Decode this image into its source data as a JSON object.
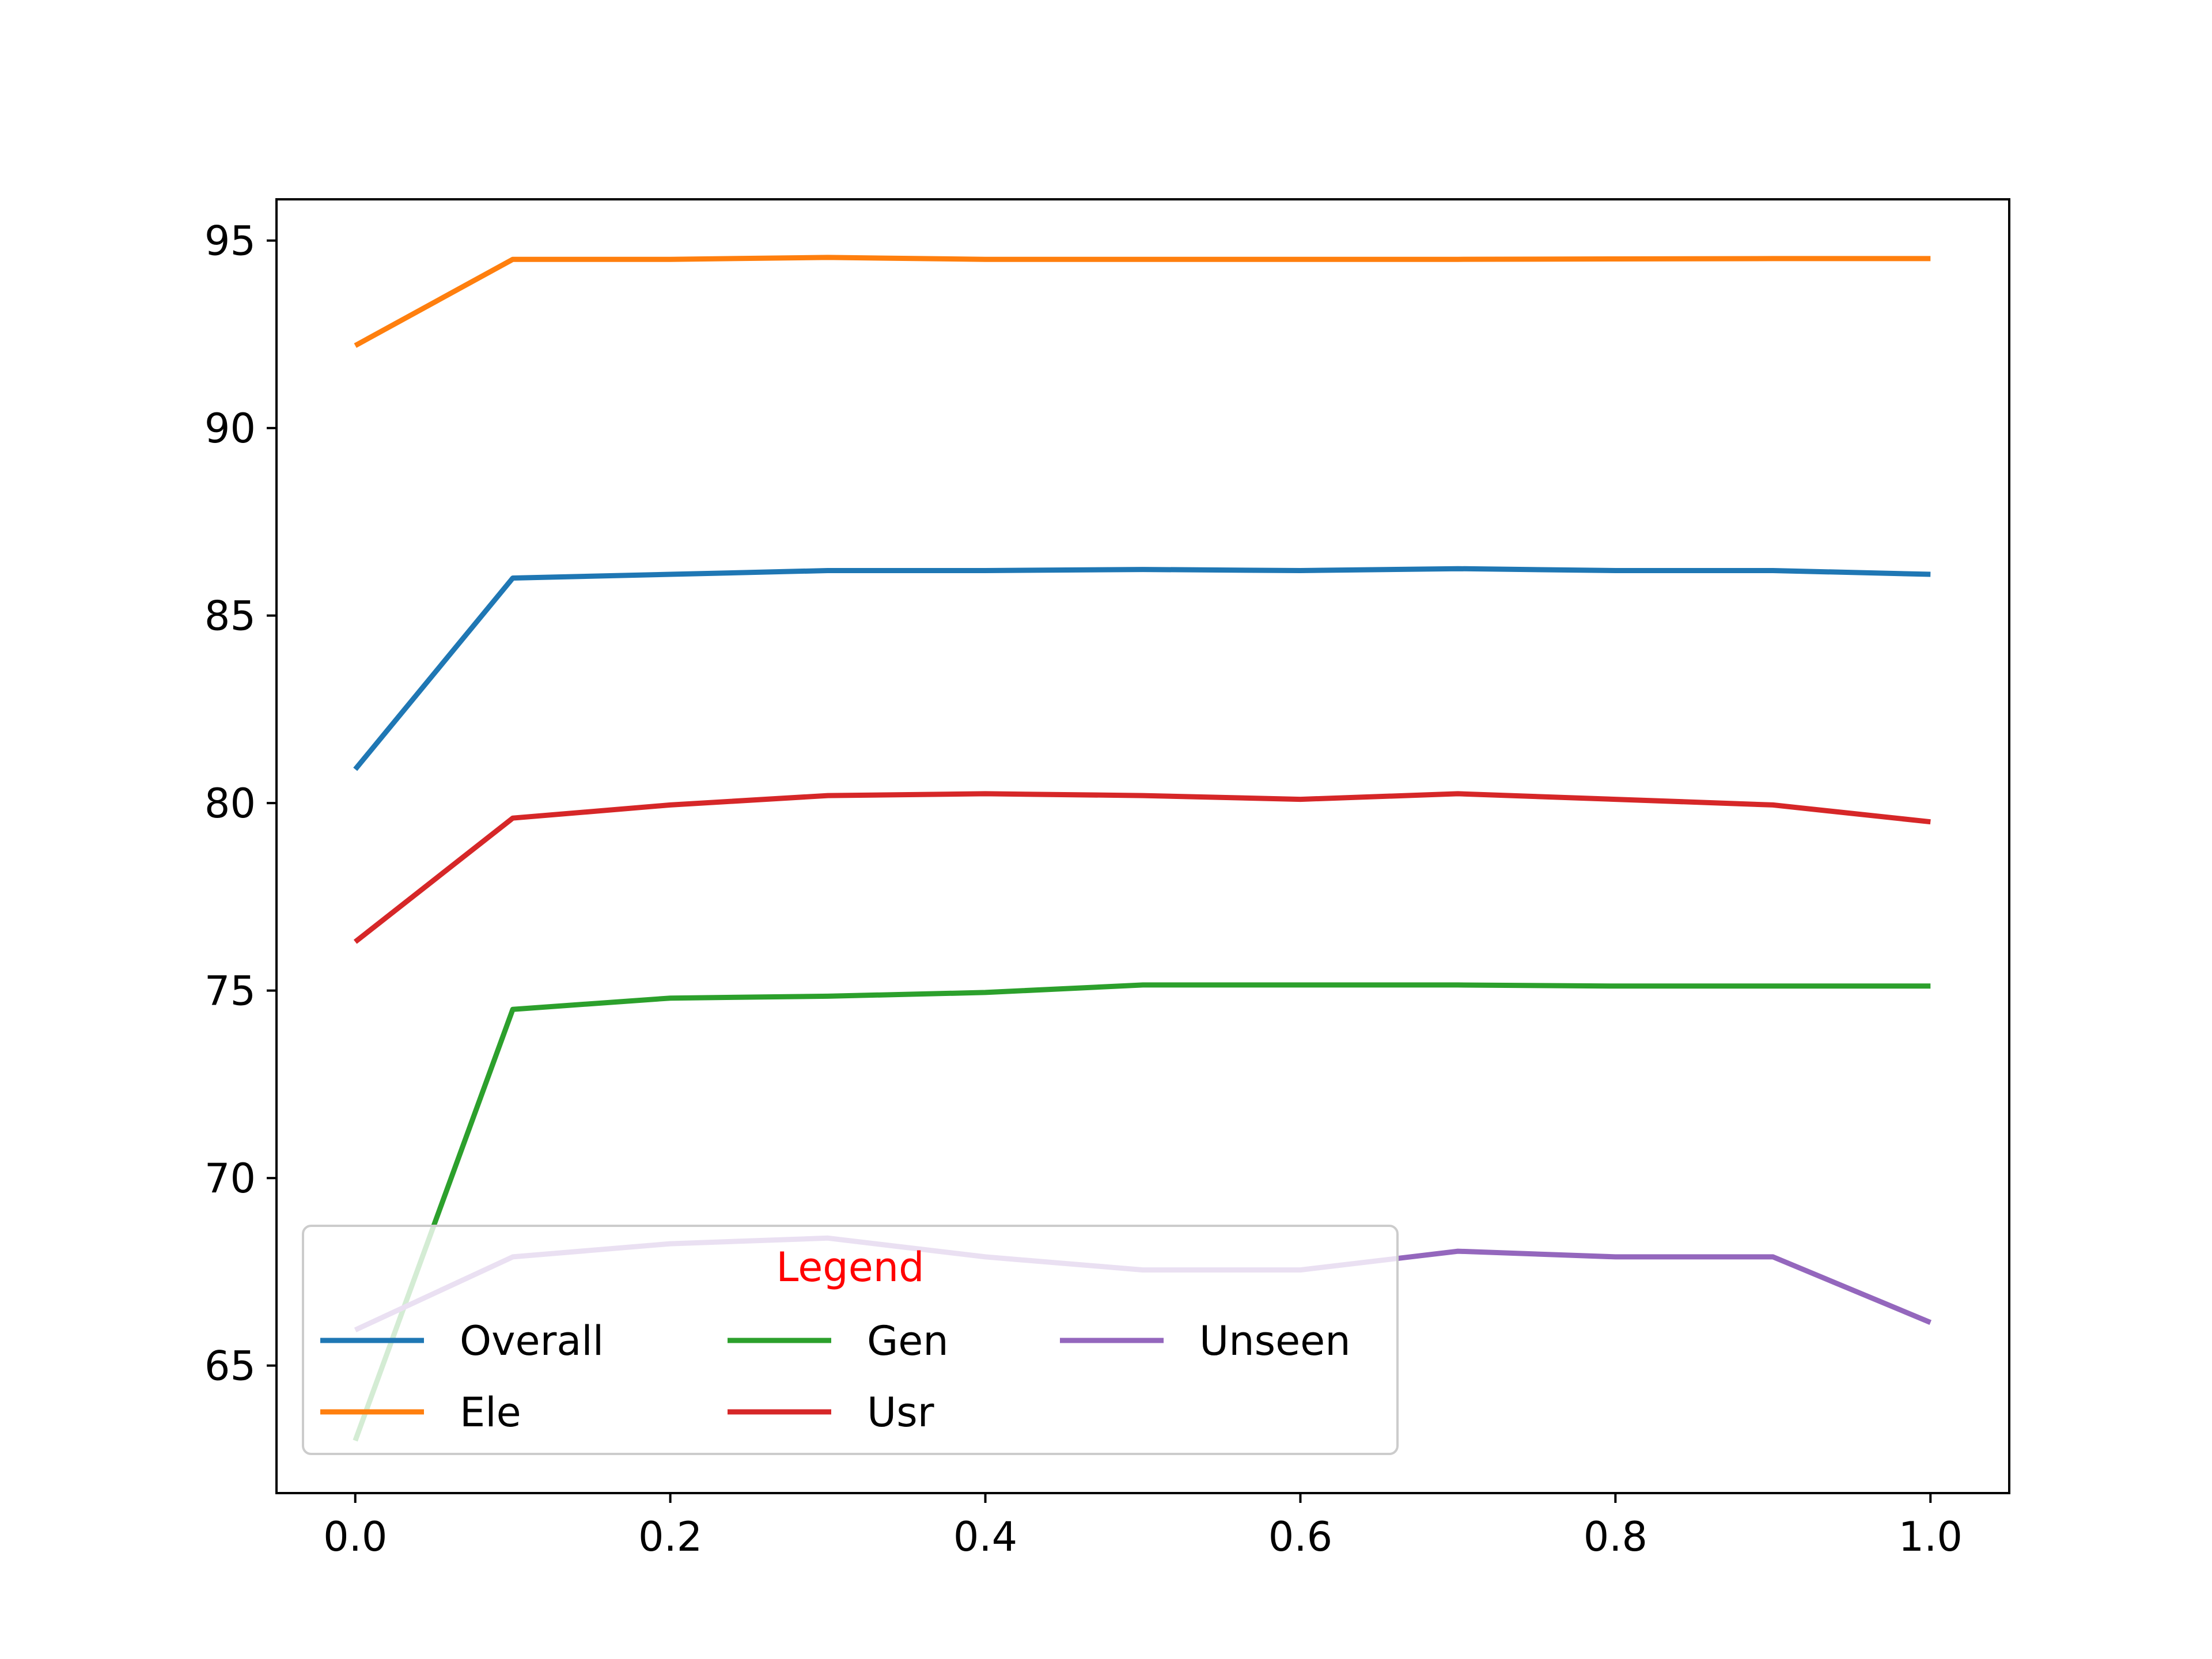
{
  "chart_data": {
    "type": "line",
    "title": "",
    "xlabel": "",
    "ylabel": "",
    "x": [
      0.0,
      0.1,
      0.2,
      0.3,
      0.4,
      0.5,
      0.6,
      0.7,
      0.8,
      0.9,
      1.0
    ],
    "xlim": [
      -0.05,
      1.05
    ],
    "ylim": [
      61.6,
      96.1
    ],
    "xticks": [
      0.0,
      0.2,
      0.4,
      0.6,
      0.8,
      1.0
    ],
    "xtick_labels": [
      "0.0",
      "0.2",
      "0.4",
      "0.6",
      "0.8",
      "1.0"
    ],
    "yticks": [
      65,
      70,
      75,
      80,
      85,
      90,
      95
    ],
    "ytick_labels": [
      "65",
      "70",
      "75",
      "80",
      "85",
      "90",
      "95"
    ],
    "grid": false,
    "series": [
      {
        "name": "Overall",
        "color": "#1f77b4",
        "values": [
          80.9,
          86.0,
          86.1,
          86.2,
          86.2,
          86.23,
          86.2,
          86.25,
          86.2,
          86.2,
          86.1
        ]
      },
      {
        "name": "Ele",
        "color": "#ff7f0e",
        "values": [
          92.2,
          94.5,
          94.5,
          94.55,
          94.5,
          94.5,
          94.5,
          94.5,
          94.51,
          94.52,
          94.52
        ]
      },
      {
        "name": "Gen",
        "color": "#2ca02c",
        "values": [
          63.0,
          74.5,
          74.8,
          74.85,
          74.95,
          75.15,
          75.15,
          75.15,
          75.12,
          75.12,
          75.12
        ]
      },
      {
        "name": "Usr",
        "color": "#d62728",
        "values": [
          76.3,
          79.6,
          79.95,
          80.2,
          80.25,
          80.2,
          80.1,
          80.25,
          80.1,
          79.95,
          79.5
        ]
      },
      {
        "name": "Unseen",
        "color": "#9467bd",
        "values": [
          65.95,
          67.9,
          68.25,
          68.4,
          67.9,
          67.55,
          67.55,
          68.05,
          67.9,
          67.9,
          66.15
        ]
      }
    ],
    "legend": {
      "title": "Legend",
      "title_color": "#ff0000",
      "placement": "lower-left",
      "columns": 3
    }
  }
}
